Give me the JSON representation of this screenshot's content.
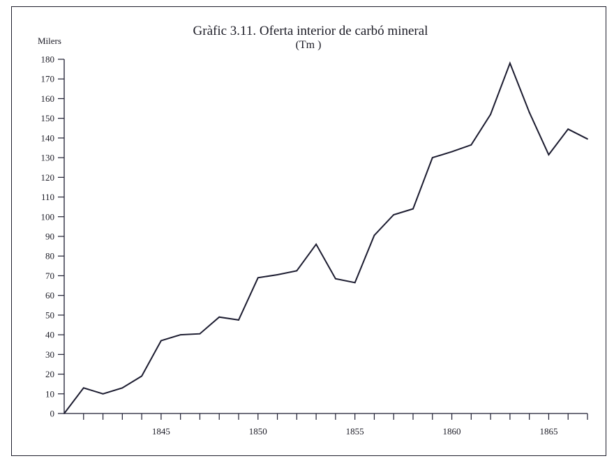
{
  "chart_data": {
    "type": "line",
    "title": "Gràfic 3.11. Oferta interior de carbó mineral",
    "subtitle": "(Tm )",
    "ylabel": "Milers",
    "xlabel": "",
    "ylim": [
      0,
      180
    ],
    "yticks": [
      0,
      10,
      20,
      30,
      40,
      50,
      60,
      70,
      80,
      90,
      100,
      110,
      120,
      130,
      140,
      150,
      160,
      170,
      180
    ],
    "xticks": [
      1845,
      1850,
      1855,
      1860,
      1865
    ],
    "xlim": [
      1840,
      1867
    ],
    "grid": false,
    "line_color": "#1c1c30",
    "series": [
      {
        "x": [
          1840,
          1841,
          1842,
          1843,
          1844,
          1845,
          1846,
          1847,
          1848,
          1849,
          1850,
          1851,
          1852,
          1853,
          1854,
          1855,
          1856,
          1857,
          1858,
          1859,
          1860,
          1861,
          1862,
          1863,
          1864,
          1865,
          1866,
          1867
        ],
        "values": [
          0,
          13,
          10,
          13,
          19,
          37,
          40,
          40.5,
          49,
          47.5,
          69,
          70.5,
          72.5,
          86,
          68.5,
          66.5,
          90.5,
          101,
          104,
          130,
          133,
          136.5,
          152,
          178,
          153,
          131.5,
          144.5,
          139.5
        ]
      }
    ]
  }
}
